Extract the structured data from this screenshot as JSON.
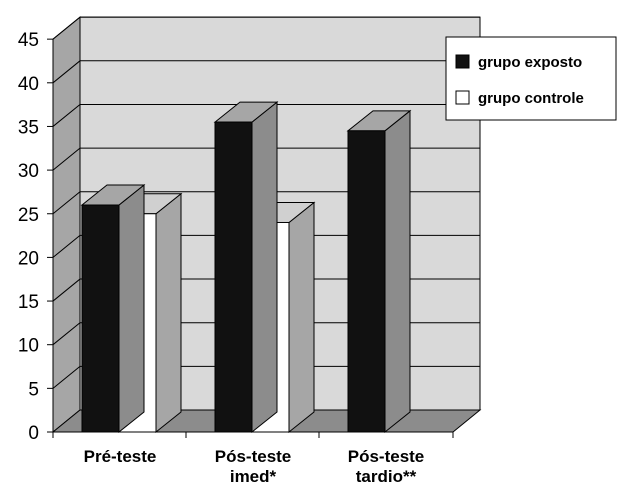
{
  "chart_data": {
    "type": "bar",
    "categories": [
      [
        "Pré-teste"
      ],
      [
        "Pós-teste",
        "imed*"
      ],
      [
        "Pós-teste",
        "tardio**"
      ]
    ],
    "series": [
      {
        "name": "grupo exposto",
        "values": [
          26,
          35.5,
          34.5
        ],
        "color": "#111111"
      },
      {
        "name": "grupo controle",
        "values": [
          25,
          24,
          null
        ],
        "color": "#ffffff"
      }
    ],
    "ylim": [
      0,
      45
    ],
    "yticks": [
      0,
      5,
      10,
      15,
      20,
      25,
      30,
      35,
      40,
      45
    ],
    "grid": true,
    "legend_position": "top-right",
    "style": "3d",
    "colors": {
      "wall": "#d9d9d9",
      "side_wall": "#a6a6a6",
      "floor": "#8c8c8c",
      "exposto_side": "#8c8c8c",
      "exposto_top": "#a6a6a6",
      "controle_side": "#a6a6a6",
      "controle_top": "#d0d0d0"
    }
  }
}
